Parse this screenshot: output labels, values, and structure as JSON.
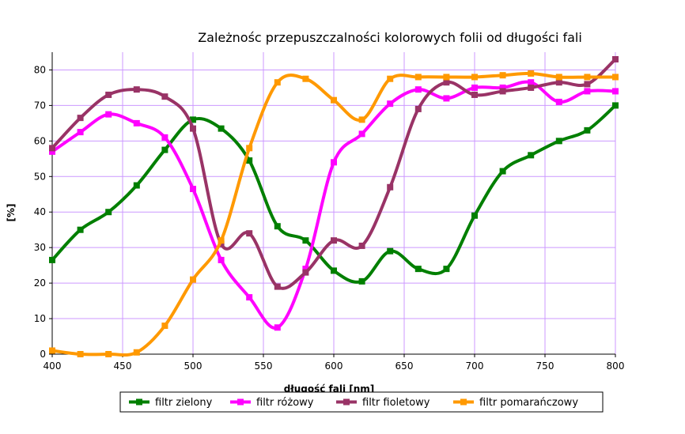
{
  "chart_data": {
    "type": "line",
    "title": "Zależnośc przepuszczalności kolorowych folii od długości fali",
    "xlabel": "długość fali [nm]",
    "ylabel": "[%]",
    "xlim": [
      400,
      800
    ],
    "ylim": [
      0,
      85
    ],
    "xticks": [
      400,
      450,
      500,
      550,
      600,
      650,
      700,
      750,
      800
    ],
    "yticks": [
      0,
      10,
      20,
      30,
      40,
      50,
      60,
      70,
      80
    ],
    "grid": true,
    "legend_position": "bottom",
    "x": [
      400,
      420,
      440,
      460,
      480,
      500,
      520,
      540,
      560,
      580,
      600,
      620,
      640,
      660,
      680,
      700,
      720,
      740,
      760,
      780,
      800
    ],
    "series": [
      {
        "name": "filtr zielony",
        "color": "#007f00",
        "values": [
          26.5,
          35,
          40,
          47.5,
          57.5,
          66,
          63.5,
          54.5,
          36,
          32,
          23.5,
          20.5,
          29,
          24,
          24,
          39,
          51.5,
          56,
          60,
          63,
          70
        ]
      },
      {
        "name": "filtr różowy",
        "color": "#ff00ff",
        "values": [
          57,
          62.5,
          67.5,
          65,
          61,
          46.5,
          26.5,
          16,
          7.5,
          24,
          54,
          62,
          70.5,
          74.5,
          72,
          75,
          75,
          76.5,
          71,
          74,
          74
        ]
      },
      {
        "name": "filtr fioletowy",
        "color": "#993366",
        "values": [
          58,
          66.5,
          73,
          74.5,
          72.5,
          63.5,
          31,
          34,
          19,
          23,
          32,
          30.5,
          47,
          69,
          76.5,
          73,
          74,
          75,
          76.5,
          76,
          83
        ]
      },
      {
        "name": "filtr pomarańczowy",
        "color": "#ff9900",
        "values": [
          1,
          0,
          0,
          null,
          0.5,
          8,
          21,
          32,
          58,
          76.5,
          77.5,
          71.5,
          66,
          77.5,
          78,
          78,
          78,
          78.5,
          79,
          78,
          78,
          78
        ],
        "x": [
          400,
          420,
          440,
          450,
          460,
          480,
          500,
          520,
          540,
          560,
          580,
          600,
          620,
          640,
          660,
          680,
          700,
          720,
          740,
          760,
          780,
          800
        ]
      }
    ]
  },
  "colors": {
    "grid": "#cc99ff",
    "axis": "#000000"
  }
}
